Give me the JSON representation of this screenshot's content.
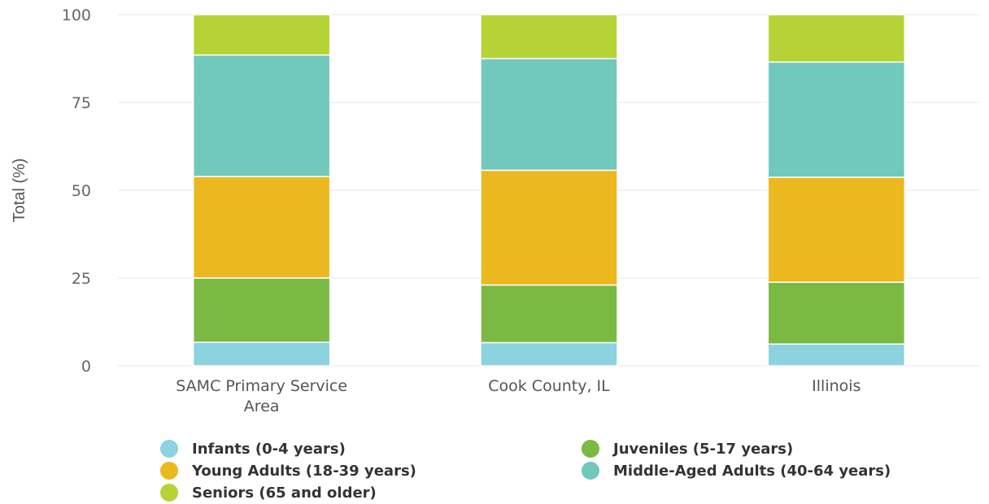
{
  "chart_data": {
    "type": "bar",
    "stacked": true,
    "title": "",
    "xlabel": "",
    "ylabel": "Total (%)",
    "ylim": [
      0,
      100
    ],
    "yticks": [
      0,
      25,
      50,
      75,
      100
    ],
    "grid": true,
    "legend_position": "bottom",
    "categories": [
      {
        "lines": [
          "SAMC Primary Service",
          "Area"
        ]
      },
      {
        "lines": [
          "Cook County, IL"
        ]
      },
      {
        "lines": [
          "Illinois"
        ]
      }
    ],
    "series": [
      {
        "name": "Infants (0-4 years)",
        "color": "#8ad3df",
        "values": [
          6.7,
          6.6,
          6.2
        ]
      },
      {
        "name": "Juveniles (5-17 years)",
        "color": "#7ab942",
        "values": [
          18.3,
          16.4,
          17.6
        ]
      },
      {
        "name": "Young Adults (18-39 years)",
        "color": "#ebb81f",
        "values": [
          28.9,
          32.7,
          29.9
        ]
      },
      {
        "name": "Middle-Aged Adults (40-64 years)",
        "color": "#71c8bc",
        "values": [
          34.6,
          31.8,
          32.8
        ]
      },
      {
        "name": "Seniors (65 and older)",
        "color": "#b5d334",
        "values": [
          11.5,
          12.5,
          13.5
        ]
      }
    ]
  }
}
